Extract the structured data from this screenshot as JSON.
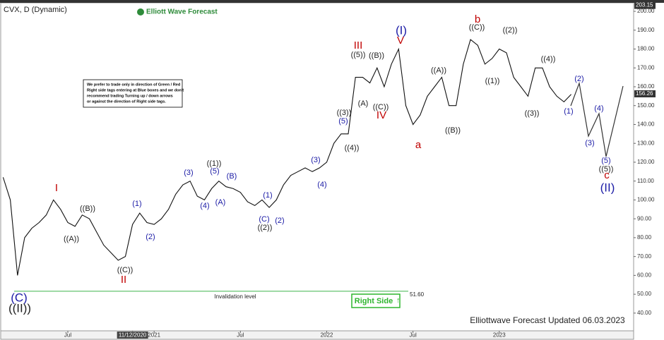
{
  "header": {
    "symbol": "CVX, D (Dynamic)",
    "logo": "Elliott Wave Forecast"
  },
  "note": [
    "We prefer to trade only in direction of Green / Red",
    "Right side tags entering at Blue boxes and we don't",
    "recommend trading Turning up / down arrows",
    "or against the direction of Right side tags."
  ],
  "footer": "Elliottwave Forecast Updated 06.03.2023",
  "badge": "Right Side",
  "chart_data": {
    "type": "line",
    "categories": [
      null,
      null,
      null,
      null,
      null,
      null,
      null,
      null,
      null,
      "Jul",
      null,
      null,
      null,
      null,
      null,
      null,
      null,
      null,
      "11/12/2020",
      null,
      null,
      "2021",
      null,
      null,
      null,
      null,
      null,
      null,
      null,
      null,
      null,
      null,
      null,
      "Jul",
      null,
      null,
      null,
      null,
      null,
      null,
      null,
      null,
      null,
      null,
      null,
      "2022",
      null,
      null,
      null,
      null,
      null,
      null,
      null,
      null,
      null,
      null,
      null,
      "Jul",
      null,
      null,
      null,
      null,
      null,
      null,
      null,
      null,
      null,
      null,
      null,
      "2023",
      null,
      null,
      null,
      null,
      null,
      null,
      null,
      null,
      null,
      null
    ],
    "series": [
      {
        "name": "CVX",
        "color": "#111111",
        "values": [
          112,
          100,
          60,
          80,
          85,
          88,
          92,
          100,
          95,
          88,
          86,
          92,
          90,
          83,
          76,
          72,
          68,
          70,
          87,
          93,
          88,
          87,
          90,
          95,
          103,
          108,
          110,
          102,
          100,
          106,
          110,
          107,
          106,
          104,
          99,
          97,
          100,
          96,
          100,
          108,
          113,
          115,
          117,
          115,
          117,
          120,
          130,
          135,
          135,
          165,
          165,
          162,
          170,
          160,
          172,
          180,
          150,
          140,
          145,
          155,
          160,
          165,
          150,
          150,
          172,
          185,
          182,
          172,
          175,
          180,
          178,
          165,
          160,
          155,
          170,
          170,
          160,
          155,
          152,
          156
        ]
      }
    ],
    "ylim": [
      30.6,
      204.5
    ],
    "yticks": [
      {
        "value": 40,
        "label": "40.00"
      },
      {
        "value": 50,
        "label": "50.00"
      },
      {
        "value": 60,
        "label": "60.00"
      },
      {
        "value": 70,
        "label": "70.00"
      },
      {
        "value": 80,
        "label": "80.00"
      },
      {
        "value": 90,
        "label": "90.00"
      },
      {
        "value": 100,
        "label": "100.00"
      },
      {
        "value": 110,
        "label": "110.00"
      },
      {
        "value": 120,
        "label": "120.00"
      },
      {
        "value": 130,
        "label": "130.00"
      },
      {
        "value": 140,
        "label": "140.00"
      },
      {
        "value": 150,
        "label": "150.00"
      },
      {
        "value": 160,
        "label": "160.00"
      },
      {
        "value": 170,
        "label": "170.00"
      },
      {
        "value": 180,
        "label": "180.00"
      },
      {
        "value": 190,
        "label": "190.00"
      },
      {
        "value": 200,
        "label": "200.00"
      }
    ],
    "last_price": 156.26,
    "high_marker": 203.15,
    "invalidation": {
      "label": "Invalidation level",
      "value": 51.6,
      "value_label": "51.60"
    },
    "annotations": [
      "(C)",
      "((II))",
      "I",
      "((A))",
      "((B))",
      "II",
      "((C))",
      "(1)",
      "(2)",
      "(3)",
      "(4)",
      "((1))",
      "(5)",
      "(A)",
      "(B)",
      "(1)",
      "(C)",
      "((2))",
      "(2)",
      "(3)",
      "(4)",
      "((3))",
      "(5)",
      "((4))",
      "III",
      "((5))",
      "((B))",
      "(A)",
      "((C))",
      "IV",
      "(I)",
      "V",
      "a",
      "((A))",
      "((B))",
      "b",
      "((C))",
      "((1))",
      "((2))",
      "((3))",
      "((4))",
      "(1)",
      "(2)",
      "(3)",
      "(4)",
      "(5)",
      "((5))",
      "c",
      "(II)"
    ]
  }
}
